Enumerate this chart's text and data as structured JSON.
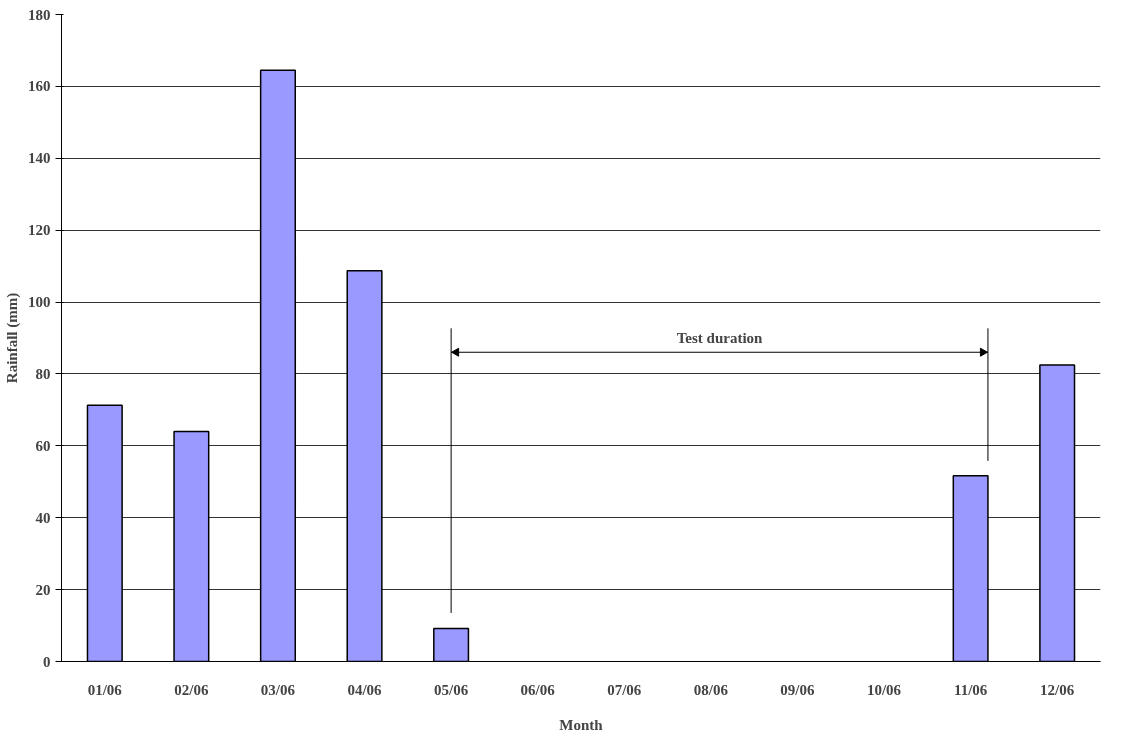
{
  "chart_data": {
    "type": "bar",
    "xlabel": "Month",
    "ylabel": "Rainfall (mm)",
    "categories": [
      "01/06",
      "02/06",
      "03/06",
      "04/06",
      "05/06",
      "06/06",
      "07/06",
      "08/06",
      "09/06",
      "10/06",
      "11/06",
      "12/06"
    ],
    "values": [
      71.3,
      64.0,
      164.5,
      108.7,
      9.2,
      0,
      0,
      0,
      0,
      0,
      51.7,
      82.5
    ],
    "color": "#9999ff",
    "ylim": [
      0,
      180
    ],
    "yticks": [
      0,
      20,
      40,
      60,
      80,
      100,
      120,
      140,
      160,
      180
    ],
    "grid": "y",
    "ref_lines": [
      {
        "axis": "x",
        "value": "05/06"
      },
      {
        "axis": "x",
        "value": "11/06"
      }
    ],
    "annotations": [
      "Test duration"
    ]
  }
}
